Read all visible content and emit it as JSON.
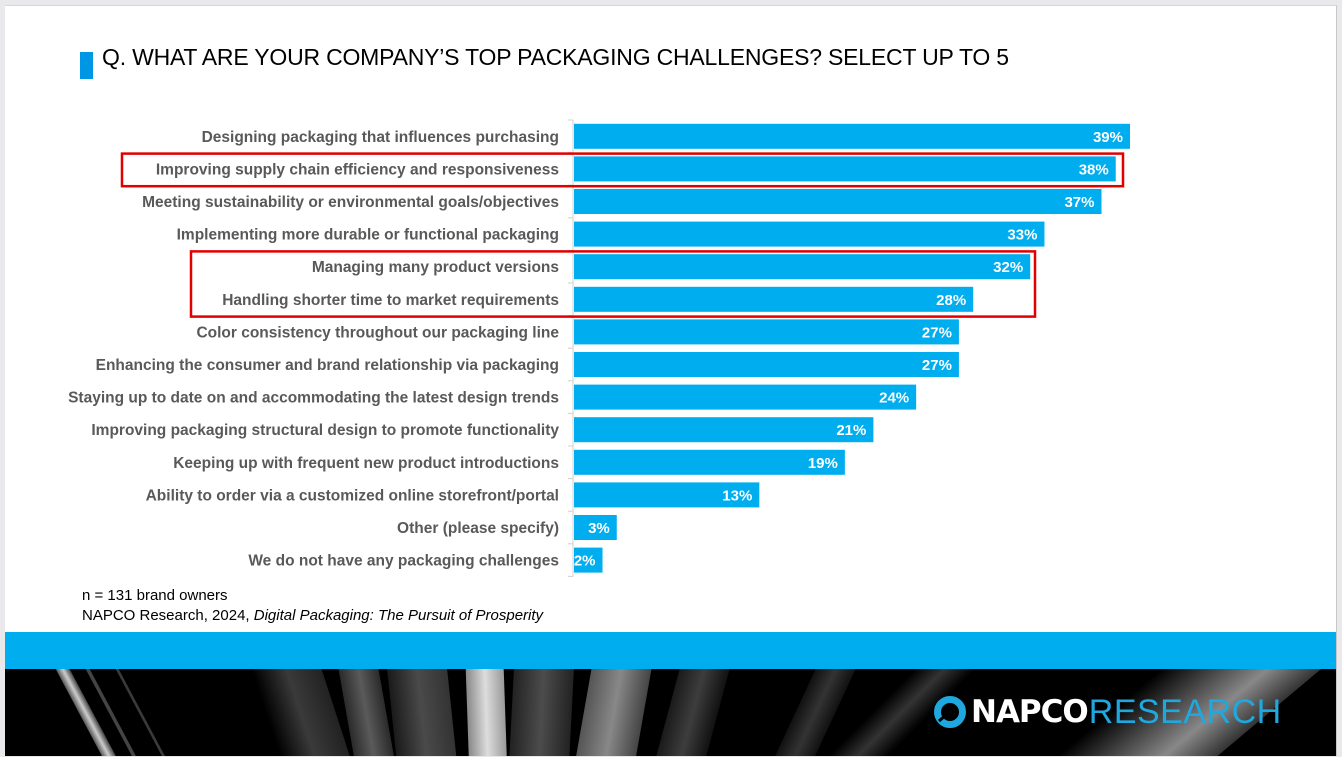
{
  "slide": {
    "title": "Q. WHAT ARE YOUR COMPANY’S TOP PACKAGING CHALLENGES? SELECT UP TO 5",
    "accent_color": "#0096e6",
    "bar_color": "#00adef",
    "highlight_color": "#e00000",
    "notes": {
      "sample": "n = 131 brand owners",
      "source_prefix": "NAPCO Research, 2024, ",
      "source_title": "Digital Packaging: The Pursuit of Prosperity"
    },
    "footer": {
      "logo_icon": "napco-ring-logo-icon",
      "logo_word1": "NAPCO",
      "logo_word2": "RESEARCH"
    }
  },
  "chart_data": {
    "type": "bar",
    "orientation": "horizontal",
    "title": "Q. WHAT ARE YOUR COMPANY’S TOP PACKAGING CHALLENGES? SELECT UP TO 5",
    "xlabel": "",
    "ylabel": "",
    "unit": "%",
    "xlim": [
      0,
      40
    ],
    "grid": false,
    "legend": "none",
    "categories": [
      "Designing packaging that influences purchasing",
      "Improving supply chain efficiency and responsiveness",
      "Meeting sustainability or environmental goals/objectives",
      "Implementing more durable or functional packaging",
      "Managing many product versions",
      "Handling shorter time to market requirements",
      "Color consistency throughout our packaging line",
      "Enhancing the consumer and brand relationship via packaging",
      "Staying up to date on and accommodating the latest design trends",
      "Improving packaging structural design to promote functionality",
      "Keeping up with frequent new product introductions",
      "Ability to order via a customized online storefront/portal",
      "Other (please specify)",
      "We do not have any packaging challenges"
    ],
    "values": [
      39,
      38,
      37,
      33,
      32,
      28,
      27,
      27,
      24,
      21,
      19,
      13,
      3,
      2
    ],
    "data_labels": [
      "39%",
      "38%",
      "37%",
      "33%",
      "32%",
      "28%",
      "27%",
      "27%",
      "24%",
      "21%",
      "19%",
      "13%",
      "3%",
      "2%"
    ],
    "annotations": [
      {
        "type": "highlight-box",
        "categories": [
          "Improving supply chain efficiency and responsiveness"
        ]
      },
      {
        "type": "highlight-box",
        "categories": [
          "Managing many product versions",
          "Handling shorter time to market requirements"
        ]
      }
    ]
  }
}
